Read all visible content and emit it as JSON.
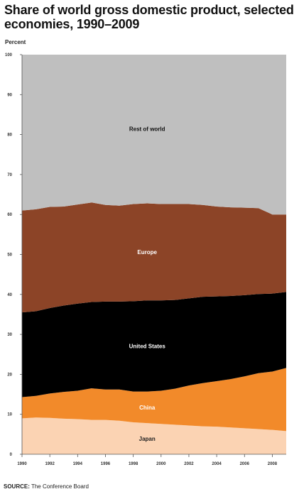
{
  "chart_data": {
    "type": "area",
    "stacked": true,
    "title": "Share of world gross domestic product, selected economies, 1990–2009",
    "ylabel": "Percent",
    "xlabel": "",
    "ylim": [
      0,
      100
    ],
    "xlim": [
      1990,
      2009
    ],
    "yticks": [
      0,
      10,
      20,
      30,
      40,
      50,
      60,
      70,
      80,
      90,
      100
    ],
    "xticks": [
      1990,
      1992,
      1994,
      1996,
      1998,
      2000,
      2002,
      2004,
      2006,
      2008
    ],
    "x": [
      1990,
      1991,
      1992,
      1993,
      1994,
      1995,
      1996,
      1997,
      1998,
      1999,
      2000,
      2001,
      2002,
      2003,
      2004,
      2005,
      2006,
      2007,
      2008,
      2009
    ],
    "series": [
      {
        "name": "Japan",
        "color": "#fbd3b3",
        "values": [
          9.0,
          9.2,
          9.1,
          8.9,
          8.8,
          8.6,
          8.6,
          8.4,
          8.0,
          7.8,
          7.6,
          7.4,
          7.2,
          7.0,
          6.9,
          6.7,
          6.5,
          6.3,
          6.1,
          5.8
        ]
      },
      {
        "name": "China",
        "color": "#f28a2a",
        "values": [
          5.3,
          5.4,
          6.1,
          6.7,
          7.1,
          7.9,
          7.6,
          7.8,
          7.7,
          7.9,
          8.3,
          9.0,
          10.0,
          10.8,
          11.4,
          12.1,
          13.0,
          14.0,
          14.6,
          15.8
        ]
      },
      {
        "name": "United States",
        "color": "#000000",
        "values": [
          21.2,
          21.2,
          21.4,
          21.6,
          21.8,
          21.6,
          22.0,
          22.0,
          22.6,
          22.8,
          22.6,
          22.2,
          21.8,
          21.6,
          21.2,
          20.8,
          20.3,
          19.8,
          19.5,
          19.0
        ]
      },
      {
        "name": "Europe",
        "color": "#8c4427",
        "values": [
          25.5,
          25.5,
          25.3,
          24.8,
          24.8,
          24.9,
          24.2,
          24.0,
          24.3,
          24.3,
          24.1,
          24.0,
          23.6,
          23.0,
          22.5,
          22.2,
          21.9,
          21.5,
          19.8,
          19.4
        ]
      },
      {
        "name": "Rest of world",
        "color": "#bfbfbf",
        "values": [
          39.0,
          38.7,
          38.1,
          38.0,
          37.5,
          37.0,
          37.6,
          37.8,
          37.4,
          37.2,
          37.4,
          37.4,
          37.4,
          37.6,
          38.0,
          38.2,
          38.3,
          38.4,
          40.0,
          40.0
        ]
      }
    ],
    "label_colors": {
      "Japan": "#222222",
      "China": "#ffffff",
      "United States": "#ffffff",
      "Europe": "#ffffff",
      "Rest of world": "#111111"
    },
    "grid": false,
    "legend": "none"
  },
  "source": {
    "prefix": "SOURCE:",
    "text": " The Conference Board"
  }
}
